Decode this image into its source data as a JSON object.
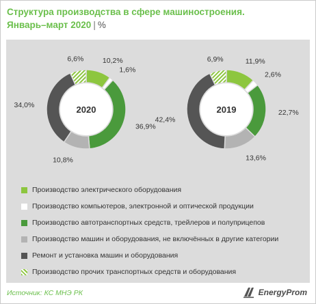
{
  "header": {
    "title": "Структура производства в сфере машиностроения.",
    "period": "Январь–март 2020",
    "unit": "%"
  },
  "colors": {
    "electrical": "#8dc63f",
    "computers": "#ffffff",
    "auto": "#4a9a3c",
    "machines": "#b3b3b3",
    "repair": "#555555",
    "other_transport": "hatched #8dc63f",
    "title": "#6abf4b"
  },
  "chart_data": [
    {
      "type": "donut",
      "center_label": "2020",
      "series": [
        {
          "key": "electrical",
          "value": 10.2,
          "label": "10,2%"
        },
        {
          "key": "computers",
          "value": 1.6,
          "label": "1,6%"
        },
        {
          "key": "auto",
          "value": 36.9,
          "label": "36,9%"
        },
        {
          "key": "machines",
          "value": 10.8,
          "label": "10,8%"
        },
        {
          "key": "repair",
          "value": 34.0,
          "label": "34,0%"
        },
        {
          "key": "other_transport",
          "value": 6.6,
          "label": "6,6%"
        }
      ]
    },
    {
      "type": "donut",
      "center_label": "2019",
      "series": [
        {
          "key": "electrical",
          "value": 11.9,
          "label": "11,9%"
        },
        {
          "key": "computers",
          "value": 2.6,
          "label": "2,6%"
        },
        {
          "key": "auto",
          "value": 22.7,
          "label": "22,7%"
        },
        {
          "key": "machines",
          "value": 13.6,
          "label": "13,6%"
        },
        {
          "key": "repair",
          "value": 42.4,
          "label": "42,4%"
        },
        {
          "key": "other_transport",
          "value": 6.9,
          "label": "6,9%"
        }
      ]
    }
  ],
  "legend": [
    {
      "key": "electrical",
      "label": "Производство электрического оборудования"
    },
    {
      "key": "computers",
      "label": "Производство компьютеров, электронной и оптической продукции"
    },
    {
      "key": "auto",
      "label": "Производство автотранспортных средств, трейлеров и полуприцепов"
    },
    {
      "key": "machines",
      "label": "Производство машин и оборудования, не включённых в другие категории"
    },
    {
      "key": "repair",
      "label": "Ремонт и установка машин и оборудования"
    },
    {
      "key": "other_transport",
      "label": "Производство прочих транспортных средств и оборудования"
    }
  ],
  "footer": {
    "source": "Источник: КС МНЭ РК",
    "brand": "EnergyProm"
  }
}
